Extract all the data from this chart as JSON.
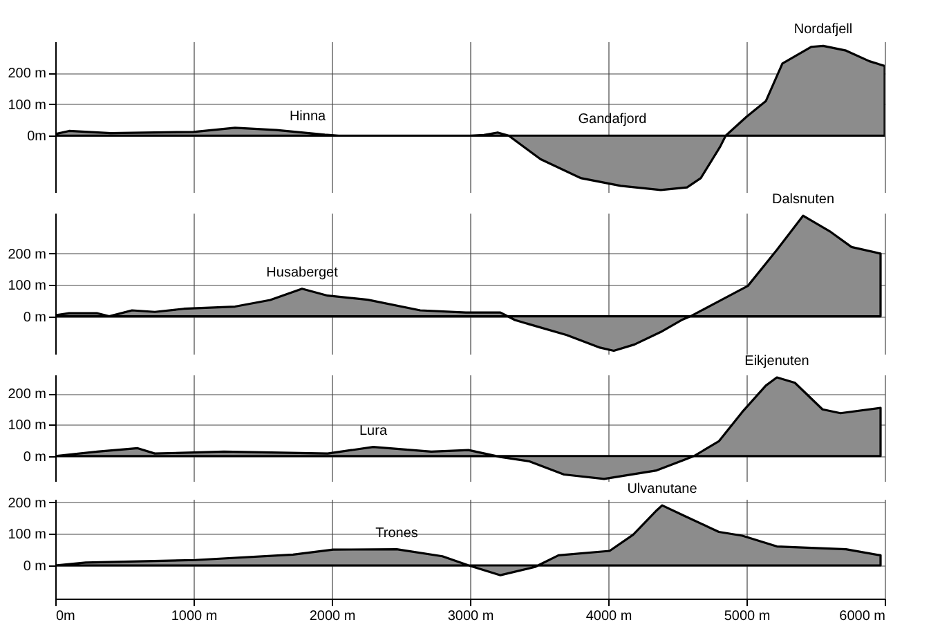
{
  "chart_data": [
    {
      "type": "area",
      "x": [
        0,
        100,
        400,
        1000,
        1300,
        1600,
        1950,
        2050,
        3000,
        3100,
        3200,
        3280,
        3510,
        3800,
        4090,
        4380,
        4570,
        4670,
        4810,
        4850,
        5000,
        5140,
        5260,
        5470,
        5555,
        5720,
        5890,
        6000
      ],
      "series": [
        {
          "color": "#8c8c8c",
          "values": [
            5,
            15,
            8,
            12,
            25,
            18,
            3,
            0,
            0,
            2,
            10,
            0,
            -75,
            -135,
            -160,
            -173,
            -165,
            -135,
            -35,
            0,
            60,
            110,
            230,
            283,
            286,
            271,
            237,
            222
          ]
        }
      ],
      "xlim": [
        0,
        6000
      ],
      "xticks": [
        0,
        1000,
        2000,
        3000,
        4000,
        5000,
        6000
      ],
      "ylim": [
        -180,
        300
      ],
      "yticks": [
        {
          "value": 0,
          "label": "0m"
        },
        {
          "value": 100,
          "label": "100 m"
        },
        {
          "value": 200,
          "label": "200 m"
        }
      ],
      "grid": true,
      "tick_labels": "y",
      "annotations": [
        {
          "text": "Hinna",
          "x": 1825,
          "y": 10
        },
        {
          "text": "Gandafjord",
          "x": 4030,
          "y": 0
        },
        {
          "text": "Nordafjell",
          "x": 5555,
          "y": 286
        }
      ]
    },
    {
      "type": "area",
      "x": [
        0,
        100,
        300,
        390,
        555,
        720,
        930,
        1300,
        1555,
        1785,
        1970,
        2260,
        2640,
        2970,
        3220,
        3325,
        3700,
        3940,
        4040,
        4190,
        4380,
        4530,
        4595,
        4800,
        5010,
        5220,
        5410,
        5600,
        5760,
        5970
      ],
      "series": [
        {
          "color": "#8c8c8c",
          "values": [
            3,
            10,
            10,
            0,
            19,
            14,
            24,
            31,
            52,
            88,
            66,
            53,
            19,
            12,
            12,
            -12,
            -60,
            -100,
            -110,
            -90,
            -50,
            -12,
            0,
            48,
            97,
            212,
            321,
            272,
            221,
            200
          ]
        }
      ],
      "xlim": [
        0,
        6000
      ],
      "xticks": [
        0,
        1000,
        2000,
        3000,
        4000,
        5000,
        6000
      ],
      "ylim": [
        -120,
        330
      ],
      "yticks": [
        {
          "value": 0,
          "label": "0 m"
        },
        {
          "value": 100,
          "label": "100 m"
        },
        {
          "value": 200,
          "label": "200 m"
        }
      ],
      "grid": true,
      "tick_labels": "y",
      "annotations": [
        {
          "text": "Husaberget",
          "x": 1785,
          "y": 88
        },
        {
          "text": "Dalsnuten",
          "x": 5410,
          "y": 321
        }
      ]
    },
    {
      "type": "area",
      "x": [
        0,
        304,
        596,
        720,
        1220,
        1970,
        2300,
        2720,
        2990,
        3220,
        3430,
        3680,
        3970,
        4350,
        4550,
        4620,
        4800,
        4970,
        5140,
        5220,
        5350,
        5550,
        5680,
        5970
      ],
      "series": [
        {
          "color": "#8c8c8c",
          "values": [
            0,
            14,
            25,
            8,
            14,
            8,
            29,
            14,
            19,
            -3,
            -17,
            -59,
            -73,
            -46,
            -12,
            0,
            47,
            141,
            225,
            251,
            234,
            149,
            137,
            154
          ]
        }
      ],
      "xlim": [
        0,
        6000
      ],
      "xticks": [
        0,
        1000,
        2000,
        3000,
        4000,
        5000,
        6000
      ],
      "ylim": [
        -80,
        260
      ],
      "yticks": [
        {
          "value": 0,
          "label": "0 m"
        },
        {
          "value": 100,
          "label": "100 m"
        },
        {
          "value": 200,
          "label": "200 m"
        }
      ],
      "grid": true,
      "tick_labels": "y",
      "annotations": [
        {
          "text": "Lura",
          "x": 2300,
          "y": 29
        },
        {
          "text": "Eikjenuten",
          "x": 5220,
          "y": 251
        }
      ]
    },
    {
      "type": "area",
      "x": [
        0,
        220,
        1010,
        1720,
        2010,
        2470,
        2800,
        2990,
        3220,
        3470,
        3640,
        4010,
        4180,
        4350,
        4390,
        4550,
        4800,
        4970,
        5220,
        5720,
        5970
      ],
      "series": [
        {
          "color": "#8c8c8c",
          "values": [
            0,
            9,
            17,
            34,
            50,
            51,
            29,
            0,
            -31,
            -5,
            32,
            46,
            97,
            174,
            190,
            157,
            106,
            94,
            60,
            51,
            32
          ]
        }
      ],
      "xlim": [
        0,
        6000
      ],
      "xticks": [
        {
          "value": 0,
          "label": "0m"
        },
        {
          "value": 1000,
          "label": "1000 m"
        },
        {
          "value": 2000,
          "label": "2000 m"
        },
        {
          "value": 3000,
          "label": "3000 m"
        },
        {
          "value": 4000,
          "label": "4000 m"
        },
        {
          "value": 5000,
          "label": "5000 m"
        },
        {
          "value": 6000,
          "label": "6000 m"
        }
      ],
      "ylim": [
        -105,
        210
      ],
      "yticks": [
        {
          "value": 0,
          "label": "0 m"
        },
        {
          "value": 100,
          "label": "100 m"
        },
        {
          "value": 200,
          "label": "200 m"
        }
      ],
      "grid": true,
      "annotations": [
        {
          "text": "Trones",
          "x": 2470,
          "y": 51
        },
        {
          "text": "Ulvanutane",
          "x": 4390,
          "y": 190
        }
      ]
    }
  ]
}
